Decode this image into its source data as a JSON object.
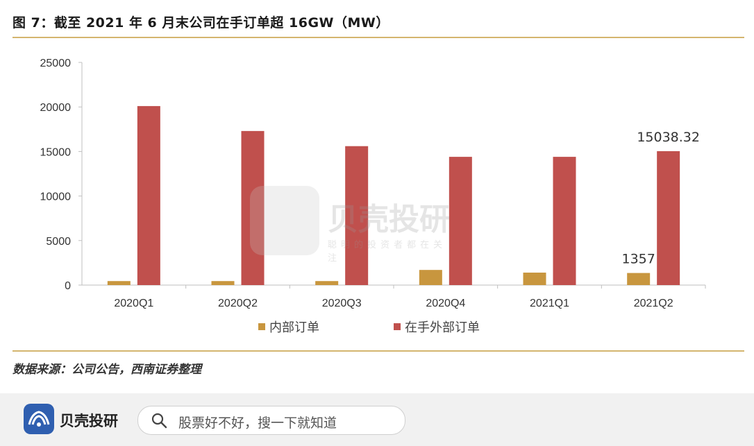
{
  "figure_title": "图 7：截至 2021 年 6 月末公司在手订单超 16GW（MW）",
  "source_note": "数据来源：公司公告，西南证券整理",
  "watermark": {
    "brand": "贝壳投研",
    "tagline": "聪明的投资者都在关注"
  },
  "footer": {
    "brand": "贝壳投研",
    "search_placeholder": "股票好不好，搜一下就知道",
    "logo_icon": "shell-logo-icon",
    "search_icon": "search-icon"
  },
  "colors": {
    "series_internal": "#c8963e",
    "series_external": "#c0504d",
    "rule": "#d4b56e",
    "logo": "#2f5fb0"
  },
  "chart_data": {
    "type": "bar",
    "categories": [
      "2020Q1",
      "2020Q2",
      "2020Q3",
      "2020Q4",
      "2021Q1",
      "2021Q2"
    ],
    "series": [
      {
        "name": "内部订单",
        "values": [
          450,
          450,
          450,
          1700,
          1400,
          1357
        ]
      },
      {
        "name": "在手外部订单",
        "values": [
          20100,
          17300,
          15600,
          14400,
          14400,
          15038.32
        ]
      }
    ],
    "annotations": [
      {
        "series": 0,
        "index": 5,
        "text": "1357"
      },
      {
        "series": 1,
        "index": 5,
        "text": "15038.32"
      }
    ],
    "yticks": [
      0,
      5000,
      10000,
      15000,
      20000,
      25000
    ],
    "ylim": [
      0,
      25000
    ],
    "grid": false,
    "legend": "bottom"
  }
}
